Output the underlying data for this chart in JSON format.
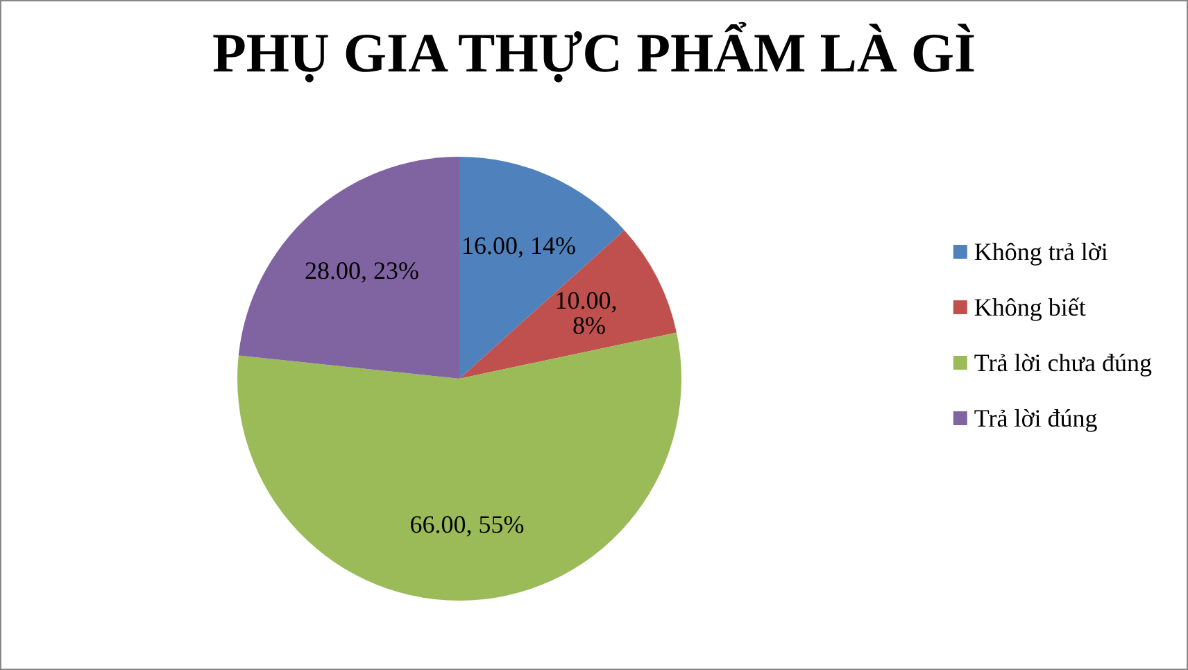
{
  "chart_data": {
    "type": "pie",
    "title": "PHỤ GIA THỰC PHẨM LÀ GÌ",
    "categories": [
      "Không trả lời",
      "Không biết",
      "Trả lời chưa đúng",
      "Trả lời đúng"
    ],
    "values": [
      16,
      10,
      66,
      28
    ],
    "value_labels": [
      "16.00, 14%",
      "10.00, 8%",
      "66.00, 55%",
      "28.00, 23%"
    ],
    "colors": [
      "#4f81bd",
      "#c0504d",
      "#9bbb59",
      "#8064a2"
    ],
    "legend": "right"
  }
}
